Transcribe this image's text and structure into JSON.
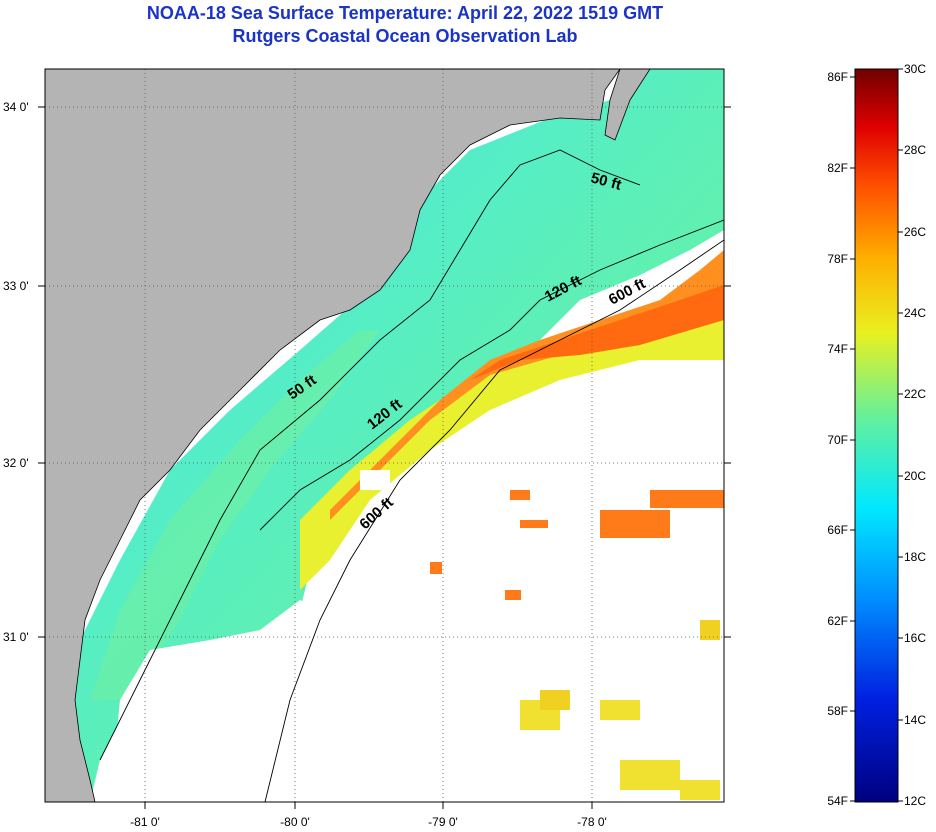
{
  "title": {
    "line1": "NOAA-18 Sea Surface Temperature:  April 22, 2022 1519 GMT",
    "line2": "Rutgers Coastal Ocean Observation Lab"
  },
  "map": {
    "lat_labels": [
      "34 0'",
      "33 0'",
      "32 0'",
      "31 0'"
    ],
    "lon_labels": [
      "-81 0'",
      "-80 0'",
      "-79 0'",
      "-78 0'"
    ],
    "contours": [
      {
        "label": "50 ft",
        "text": "50 ft"
      },
      {
        "label": "50 ft",
        "text": "50 ft"
      },
      {
        "label": "120 ft",
        "text": "120 ft"
      },
      {
        "label": "120 ft",
        "text": "120 ft"
      },
      {
        "label": "600 ft",
        "text": "600 ft"
      },
      {
        "label": "600 ft",
        "text": "600 ft"
      }
    ]
  },
  "colorbar": {
    "fahrenheit_labels": [
      "86F",
      "82F",
      "78F",
      "74F",
      "70F",
      "66F",
      "62F",
      "58F",
      "54F"
    ],
    "celsius_labels": [
      "30C",
      "28C",
      "26C",
      "24C",
      "22C",
      "20C",
      "18C",
      "16C",
      "14C",
      "12C"
    ],
    "colors": {
      "cold": "#000080",
      "blue": "#0040ff",
      "cyan": "#00e8ff",
      "green": "#60f0a0",
      "yellow": "#f0f020",
      "orange": "#ff8000",
      "red": "#ff1000",
      "darkred": "#700000"
    }
  },
  "colors": {
    "land": "#b4b4b4",
    "title": "#1a33c8"
  }
}
